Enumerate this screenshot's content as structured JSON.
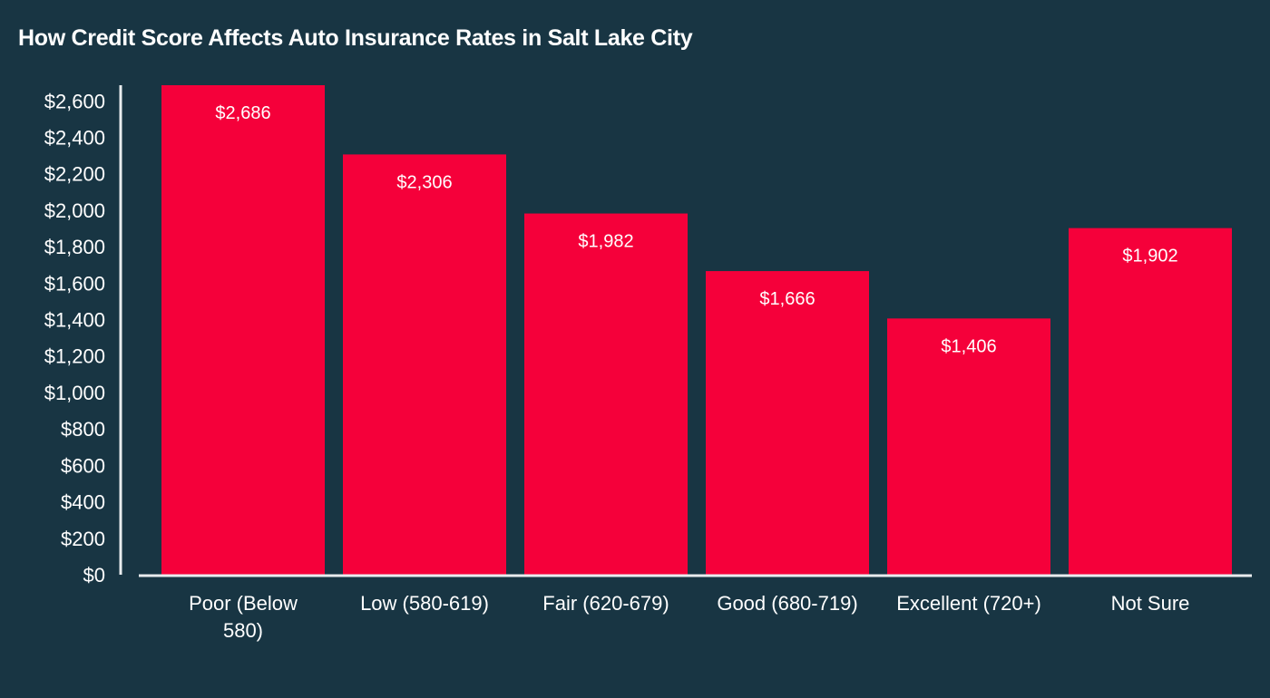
{
  "chart_data": {
    "type": "bar",
    "title": "How Credit Score Affects Auto Insurance Rates in Salt Lake City",
    "categories": [
      "Poor (Below 580)",
      "Low (580-619)",
      "Fair (620-679)",
      "Good (680-719)",
      "Excellent (720+)",
      "Not Sure"
    ],
    "category_lines": [
      [
        "Poor (Below",
        "580)"
      ],
      [
        "Low (580-619)"
      ],
      [
        "Fair (620-679)"
      ],
      [
        "Good (680-719)"
      ],
      [
        "Excellent (720+)"
      ],
      [
        "Not Sure"
      ]
    ],
    "values": [
      2686,
      2306,
      1982,
      1666,
      1406,
      1902
    ],
    "data_labels": [
      "$2,686",
      "$2,306",
      "$1,982",
      "$1,666",
      "$1,406",
      "$1,902"
    ],
    "yticks": [
      0,
      200,
      400,
      600,
      800,
      1000,
      1200,
      1400,
      1600,
      1800,
      2000,
      2200,
      2400,
      2600
    ],
    "ytick_labels": [
      "$0",
      "$200",
      "$400",
      "$600",
      "$800",
      "$1,000",
      "$1,200",
      "$1,400",
      "$1,600",
      "$1,800",
      "$2,000",
      "$2,200",
      "$2,400",
      "$2,600"
    ],
    "ylim": [
      0,
      2686
    ],
    "grid": false,
    "legend": "none",
    "xlabel": "",
    "ylabel": "",
    "colors": {
      "background": "#183543",
      "bar": "#F5003A",
      "axis": "#e8ecee",
      "text": "#ffffff"
    }
  }
}
